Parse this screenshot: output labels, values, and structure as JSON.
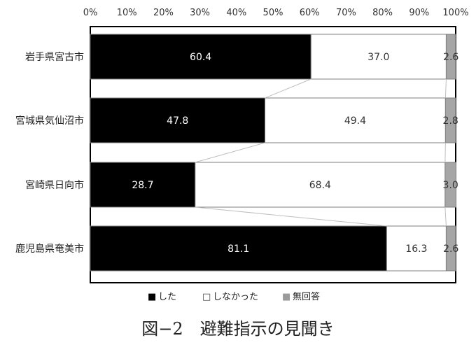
{
  "chart_data": {
    "type": "bar",
    "stacked": true,
    "orientation": "horizontal",
    "categories": [
      "岩手県宮古市",
      "宮城県気仙沼市",
      "宮崎県日向市",
      "鹿児島県奄美市"
    ],
    "series": [
      {
        "name": "した",
        "values": [
          60.4,
          47.8,
          28.7,
          81.1
        ],
        "color": "#000000",
        "label_color": "#ffffff"
      },
      {
        "name": "しなかった",
        "values": [
          37.0,
          49.4,
          68.4,
          16.3
        ],
        "color": "#ffffff",
        "label_color": "#333333"
      },
      {
        "name": "無回答",
        "values": [
          2.6,
          2.8,
          3.0,
          2.6
        ],
        "color": "#a6a6a6",
        "label_color": "#333333"
      }
    ],
    "value_labels": [
      [
        "60.4",
        "47.8",
        "28.7",
        "81.1"
      ],
      [
        "37.0",
        "49.4",
        "68.4",
        "16.3"
      ],
      [
        "2.6",
        "2.8",
        "3.0",
        "2.6"
      ]
    ],
    "x_ticks": [
      "0%",
      "10%",
      "20%",
      "30%",
      "40%",
      "50%",
      "60%",
      "70%",
      "80%",
      "90%",
      "100%"
    ],
    "xlim": [
      0,
      100
    ],
    "legend": {
      "position": "bottom",
      "items": [
        {
          "marker": "■",
          "label": "した"
        },
        {
          "marker": "□",
          "label": "しなかった"
        },
        {
          "marker": "■",
          "label": "無回答"
        }
      ]
    },
    "series_lines": true,
    "title": "",
    "xlabel": "",
    "ylabel": ""
  },
  "caption": "図−2　避難指示の見聞き"
}
